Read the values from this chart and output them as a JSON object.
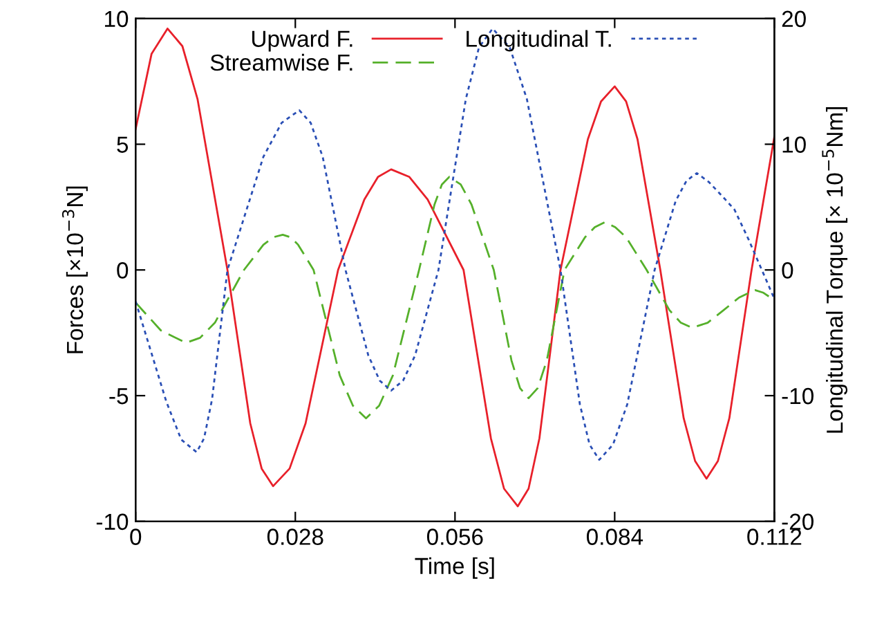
{
  "chart_data": {
    "type": "line",
    "xlabel": "Time [s]",
    "ylabel": "Forces [×10$^{−3}$N]",
    "y2label": "Longitudinal Torque [× 10$^{−5}$Nm]",
    "xlim": [
      0,
      0.112
    ],
    "xticks": [
      0,
      0.028,
      0.056,
      0.084,
      0.112
    ],
    "ylim": [
      -10,
      10
    ],
    "yticks": [
      -10,
      -5,
      0,
      5,
      10
    ],
    "y2lim": [
      -20,
      20
    ],
    "y2ticks": [
      -20,
      -10,
      0,
      10,
      20
    ],
    "legend": "top",
    "grid": false,
    "marker": "none",
    "series": [
      {
        "name": "Upward F.",
        "color": "#e8202a",
        "line_style": "solid",
        "x": [
          0,
          0.0028,
          0.0056,
          0.0082,
          0.01085,
          0.0161,
          0.0201,
          0.0221,
          0.0241,
          0.027,
          0.0298,
          0.0355,
          0.0401,
          0.0425,
          0.0448,
          0.048,
          0.0512,
          0.0575,
          0.0623,
          0.0646,
          0.067,
          0.0689,
          0.0708,
          0.0745,
          0.0793,
          0.0816,
          0.084,
          0.086,
          0.088,
          0.092,
          0.0961,
          0.0981,
          0.1001,
          0.1021,
          0.1041,
          0.108,
          0.112
        ],
        "values": [
          5.6,
          8.6,
          9.6,
          8.9,
          6.8,
          0,
          -6.1,
          -7.9,
          -8.6,
          -7.9,
          -6.1,
          0,
          2.8,
          3.7,
          4.0,
          3.7,
          2.8,
          0,
          -6.7,
          -8.7,
          -9.4,
          -8.7,
          -6.7,
          0,
          5.2,
          6.7,
          7.3,
          6.7,
          5.2,
          0,
          -5.9,
          -7.6,
          -8.3,
          -7.6,
          -5.9,
          0,
          5.3
        ]
      },
      {
        "name": "Streamwise F.",
        "color": "#55b02a",
        "line_style": "dashed",
        "x": [
          0,
          0.0044,
          0.0088,
          0.0113,
          0.0139,
          0.019,
          0.0224,
          0.0241,
          0.0258,
          0.0272,
          0.0285,
          0.0312,
          0.0358,
          0.0381,
          0.0404,
          0.0427,
          0.0451,
          0.0497,
          0.0524,
          0.0537,
          0.055,
          0.057,
          0.0589,
          0.0628,
          0.0659,
          0.0674,
          0.0689,
          0.0705,
          0.0721,
          0.0752,
          0.0788,
          0.0805,
          0.0823,
          0.0841,
          0.086,
          0.0896,
          0.0936,
          0.0956,
          0.0976,
          0.1003,
          0.1031,
          0.1058,
          0.1086,
          0.11,
          0.112
        ],
        "values": [
          -1.3,
          -2.4,
          -2.9,
          -2.7,
          -2.1,
          0,
          1.0,
          1.3,
          1.4,
          1.3,
          1.0,
          0,
          -4.2,
          -5.4,
          -5.9,
          -5.4,
          -4.2,
          0,
          2.6,
          3.4,
          3.7,
          3.4,
          2.6,
          0,
          -3.6,
          -4.7,
          -5.1,
          -4.7,
          -3.6,
          0,
          1.3,
          1.7,
          1.9,
          1.7,
          1.3,
          0,
          -1.6,
          -2.1,
          -2.3,
          -2.1,
          -1.6,
          -1.1,
          -0.8,
          -0.9,
          -1.2
        ]
      },
      {
        "name": "Longitudinal T.",
        "color": "#2a4fb5",
        "line_style": "dotted",
        "axis": "y2",
        "x": [
          0,
          0.0027,
          0.0054,
          0.008,
          0.0107,
          0.012,
          0.0134,
          0.0161,
          0.0224,
          0.0256,
          0.0287,
          0.0307,
          0.0328,
          0.0368,
          0.0408,
          0.0428,
          0.0448,
          0.0469,
          0.049,
          0.0531,
          0.0579,
          0.0602,
          0.0626,
          0.0656,
          0.0686,
          0.0745,
          0.0779,
          0.0796,
          0.0813,
          0.0837,
          0.0862,
          0.091,
          0.0947,
          0.0966,
          0.0984,
          0.1005,
          0.103,
          0.105,
          0.1075,
          0.1098,
          0.112
        ],
        "values": [
          -2.5,
          -6.5,
          -10.5,
          -13.5,
          -14.5,
          -13.4,
          -10.3,
          0,
          9.0,
          11.7,
          12.7,
          11.7,
          9.0,
          0,
          -6.8,
          -8.8,
          -9.6,
          -8.8,
          -6.8,
          0,
          13.6,
          17.7,
          19.2,
          17.7,
          13.6,
          0,
          -10.7,
          -13.9,
          -15.1,
          -13.9,
          -10.7,
          0,
          5.5,
          7.1,
          7.7,
          7.0,
          5.8,
          4.8,
          2.4,
          0,
          -2.3
        ]
      }
    ]
  }
}
